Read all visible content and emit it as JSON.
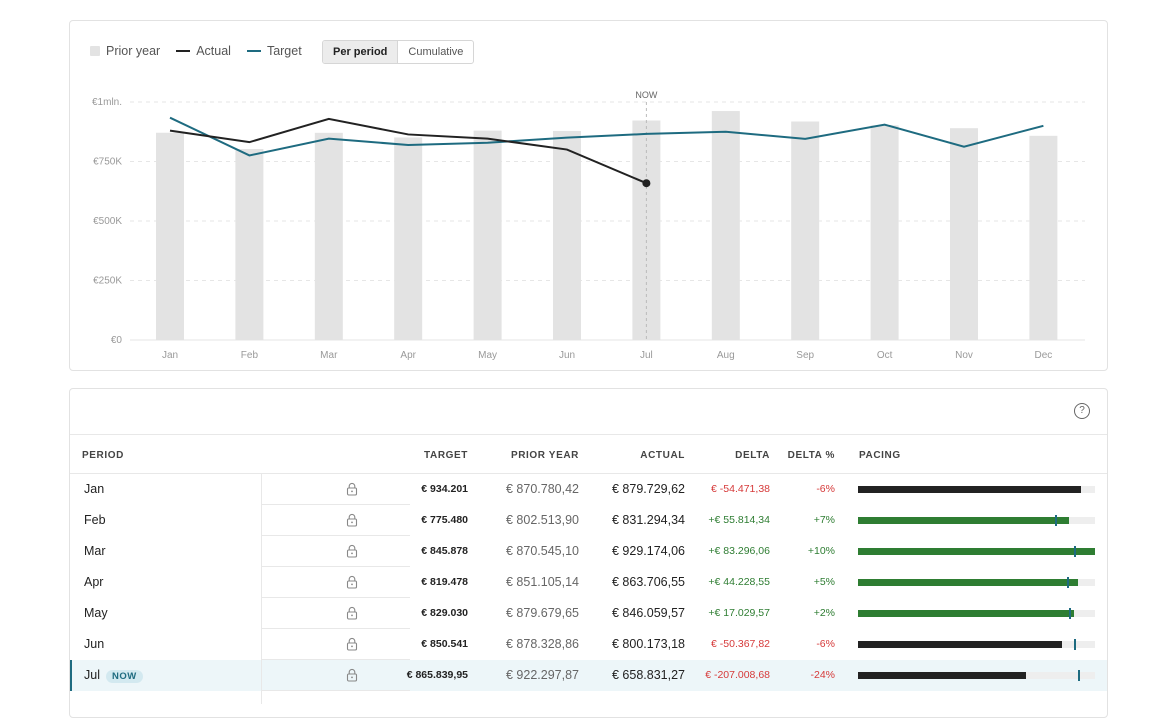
{
  "legend": {
    "prior": "Prior year",
    "actual": "Actual",
    "target": "Target"
  },
  "toggle": {
    "per_period": "Per period",
    "cumulative": "Cumulative"
  },
  "colors": {
    "prior": "#e3e3e3",
    "actual": "#222222",
    "target": "#1e6b80",
    "pos": "#2e7d32",
    "neg": "#d63a3a"
  },
  "chart_data": {
    "type": "bar",
    "categories": [
      "Jan",
      "Feb",
      "Mar",
      "Apr",
      "May",
      "Jun",
      "Jul",
      "Aug",
      "Sep",
      "Oct",
      "Nov",
      "Dec"
    ],
    "y_ticks": [
      "€0",
      "€250K",
      "€500K",
      "€750K",
      "€1mln."
    ],
    "ylim": [
      0,
      1000000
    ],
    "now_label": "NOW",
    "now_index": 6,
    "grid": true,
    "legend_position": "top-left",
    "series": [
      {
        "name": "Prior year",
        "type": "bar",
        "values": [
          870780,
          802514,
          870545,
          851105,
          879680,
          878329,
          922298,
          962000,
          918000,
          902000,
          890000,
          858000
        ]
      },
      {
        "name": "Actual",
        "type": "line",
        "values": [
          879730,
          831294,
          929174,
          863707,
          846060,
          800173,
          658831,
          null,
          null,
          null,
          null,
          null
        ]
      },
      {
        "name": "Target",
        "type": "line",
        "values": [
          934201,
          775480,
          845878,
          819478,
          829030,
          850541,
          865840,
          875000,
          845000,
          905000,
          812000,
          900000
        ]
      }
    ]
  },
  "table": {
    "headers": {
      "period": "PERIOD",
      "target": "TARGET",
      "prior": "PRIOR YEAR",
      "actual": "ACTUAL",
      "delta": "DELTA",
      "delta_pct": "DELTA %",
      "pacing": "PACING"
    },
    "now_badge": "NOW",
    "rows": [
      {
        "period": "Jan",
        "target": "€ 934.201",
        "prior": "€ 870.780,42",
        "actual": "€ 879.729,62",
        "delta": "€ -54.471,38",
        "delta_pct": "-6%",
        "sign": "neg",
        "pacing": 0.94,
        "now": false
      },
      {
        "period": "Feb",
        "target": "€ 775.480",
        "prior": "€ 802.513,90",
        "actual": "€ 831.294,34",
        "delta": "+€ 55.814,34",
        "delta_pct": "+7%",
        "sign": "pos",
        "pacing": 0.89,
        "marker": 0.83,
        "now": false
      },
      {
        "period": "Mar",
        "target": "€ 845.878",
        "prior": "€ 870.545,10",
        "actual": "€ 929.174,06",
        "delta": "+€ 83.296,06",
        "delta_pct": "+10%",
        "sign": "pos",
        "pacing": 1.0,
        "marker": 0.91,
        "now": false
      },
      {
        "period": "Apr",
        "target": "€ 819.478",
        "prior": "€ 851.105,14",
        "actual": "€ 863.706,55",
        "delta": "+€ 44.228,55",
        "delta_pct": "+5%",
        "sign": "pos",
        "pacing": 0.93,
        "marker": 0.88,
        "now": false
      },
      {
        "period": "May",
        "target": "€ 829.030",
        "prior": "€ 879.679,65",
        "actual": "€ 846.059,57",
        "delta": "+€ 17.029,57",
        "delta_pct": "+2%",
        "sign": "pos",
        "pacing": 0.91,
        "marker": 0.89,
        "now": false
      },
      {
        "period": "Jun",
        "target": "€ 850.541",
        "prior": "€ 878.328,86",
        "actual": "€ 800.173,18",
        "delta": "€ -50.367,82",
        "delta_pct": "-6%",
        "sign": "neg",
        "pacing": 0.86,
        "marker": 0.91,
        "now": false
      },
      {
        "period": "Jul",
        "target": "€ 865.839,95",
        "prior": "€ 922.297,87",
        "actual": "€ 658.831,27",
        "delta": "€ -207.008,68",
        "delta_pct": "-24%",
        "sign": "neg",
        "pacing": 0.71,
        "marker": 0.93,
        "now": true
      }
    ]
  }
}
